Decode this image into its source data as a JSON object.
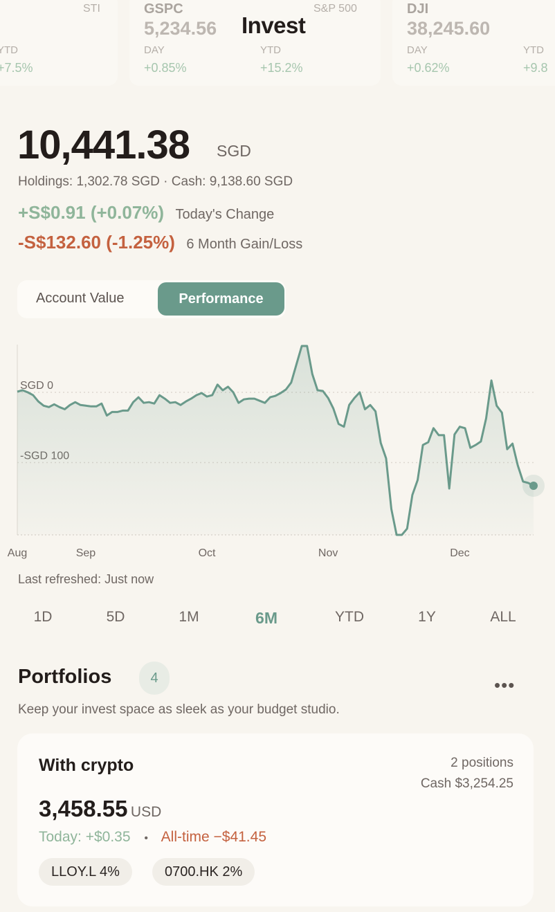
{
  "header": {
    "title": "Invest"
  },
  "tickers": [
    {
      "symbol": "",
      "name": "STI",
      "price": "",
      "day_label": "",
      "day": "",
      "ytd_label": "YTD",
      "ytd": "+7.5%"
    },
    {
      "symbol": "GSPC",
      "name": "S&P 500",
      "price": "5,234.56",
      "day_label": "DAY",
      "day": "+0.85%",
      "ytd_label": "YTD",
      "ytd": "+15.2%"
    },
    {
      "symbol": "DJI",
      "name": "",
      "price": "38,245.60",
      "day_label": "DAY",
      "day": "+0.62%",
      "ytd_label": "YTD",
      "ytd": "+9.8"
    }
  ],
  "account": {
    "value": "10,441.38",
    "currency": "SGD",
    "breakdown": "Holdings: 1,302.78 SGD · Cash: 9,138.60 SGD",
    "today_change": "+S$0.91 (+0.07%)",
    "today_label": "Today's Change",
    "period_change": "-S$132.60 (-1.25%)",
    "period_label": "6 Month Gain/Loss"
  },
  "toggle": {
    "options": [
      "Account Value",
      "Performance"
    ],
    "selected": "Performance"
  },
  "colors": {
    "accent": "#6a9a8b",
    "positive": "#8fb59a",
    "negative": "#c4613f",
    "background": "#f8f5ef"
  },
  "chart_data": {
    "type": "area",
    "ylim": [
      -203,
      68
    ],
    "y_ticks": [
      {
        "value": 0,
        "label": "SGD 0"
      },
      {
        "value": -100,
        "label": "-SGD 100"
      }
    ],
    "x_ticks": [
      {
        "label": "Aug",
        "index": 0
      },
      {
        "label": "Sep",
        "index": 13
      },
      {
        "label": "Oct",
        "index": 36
      },
      {
        "label": "Nov",
        "index": 59
      },
      {
        "label": "Dec",
        "index": 84
      }
    ],
    "grid": "dotted horizontal",
    "values": [
      1,
      3,
      0,
      -4,
      -13,
      -19,
      -21,
      -17,
      -21,
      -24,
      -18,
      -14,
      -18,
      -19,
      -20,
      -20,
      -16,
      -33,
      -28,
      -28,
      -26,
      -26,
      -14,
      -7,
      -15,
      -14,
      -16,
      -4,
      -9,
      -15,
      -14,
      -18,
      -13,
      -9,
      -4,
      -1,
      -6,
      -4,
      11,
      3,
      8,
      0,
      -15,
      -10,
      -9,
      -9,
      -12,
      -15,
      -7,
      -5,
      -1,
      4,
      14,
      40,
      66,
      66,
      26,
      3,
      2,
      -8,
      -23,
      -45,
      -49,
      -18,
      -8,
      0,
      -24,
      -18,
      -27,
      -72,
      -94,
      -166,
      -203,
      -203,
      -194,
      -146,
      -125,
      -75,
      -71,
      -51,
      -61,
      -61,
      -137,
      -60,
      -49,
      -51,
      -79,
      -75,
      -70,
      -37,
      17,
      -19,
      -29,
      -81,
      -73,
      -104,
      -127,
      -129,
      -133
    ]
  },
  "refresh": "Last refreshed: Just now",
  "ranges": {
    "options": [
      "1D",
      "5D",
      "1M",
      "6M",
      "YTD",
      "1Y",
      "ALL"
    ],
    "selected": "6M"
  },
  "portfolios": {
    "title": "Portfolios",
    "count": "4",
    "subtitle": "Keep your invest space as sleek as your budget studio.",
    "items": [
      {
        "name": "With crypto",
        "positions": "2 positions",
        "cash": "Cash $3,254.25",
        "value": "3,458.55",
        "currency": "USD",
        "today": "Today: +$0.35",
        "separator": "•",
        "alltime": "All-time −$41.45",
        "holdings": [
          "LLOY.L 4%",
          "0700.HK 2%"
        ]
      }
    ]
  }
}
